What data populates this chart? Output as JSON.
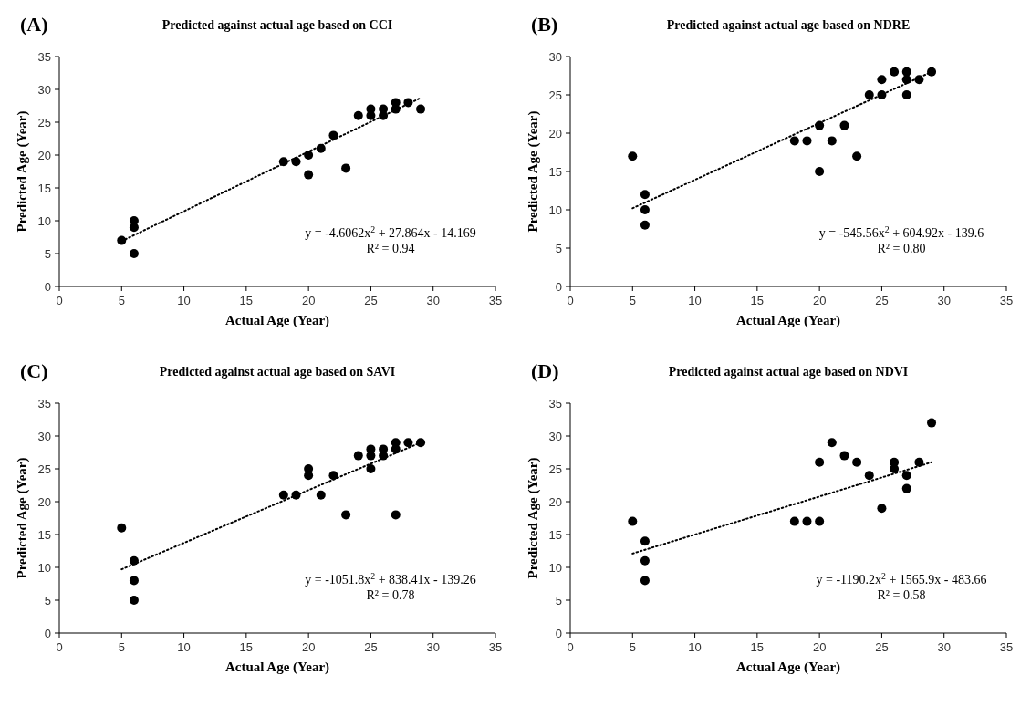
{
  "chart_data": [
    {
      "type": "scatter",
      "title": "Predicted against actual age based on CCI",
      "xlabel": "Actual Age (Year)",
      "ylabel": "Predicted Age (Year)",
      "annotations": [
        "(A)",
        "y = -4.6062x$^{2}$ + 27.864x - 14.169",
        "R² = 0.94"
      ],
      "xlim": [
        0,
        35
      ],
      "xticks": [
        0,
        5,
        10,
        15,
        20,
        25,
        30,
        35
      ],
      "ylim": [
        0,
        35
      ],
      "yticks": [
        0,
        5,
        10,
        15,
        20,
        25,
        30,
        35
      ],
      "marker": "circle",
      "series": [
        {
          "color": "#000000",
          "x": [
            5,
            6,
            6,
            6,
            18,
            19,
            20,
            20,
            21,
            22,
            23,
            24,
            25,
            25,
            26,
            26,
            27,
            27,
            28,
            29
          ],
          "values": [
            7,
            10,
            9,
            5,
            19,
            19,
            20,
            17,
            21,
            23,
            18,
            26,
            27,
            26,
            27,
            26,
            28,
            27,
            28,
            27
          ]
        },
        {
          "type": "line",
          "color": "#000000",
          "line_style": "dotted",
          "marker": "none",
          "x": [
            5,
            29
          ],
          "values": [
            6.9,
            28.7
          ]
        }
      ]
    },
    {
      "type": "scatter",
      "title": "Predicted against actual age based on NDRE",
      "xlabel": "Actual Age (Year)",
      "ylabel": "Predicted Age (Year)",
      "annotations": [
        "(B)",
        "y = -545.56x$^{2}$ + 604.92x - 139.6",
        "R² = 0.80"
      ],
      "xlim": [
        0,
        35
      ],
      "xticks": [
        0,
        5,
        10,
        15,
        20,
        25,
        30,
        35
      ],
      "ylim": [
        0,
        30
      ],
      "yticks": [
        0,
        5,
        10,
        15,
        20,
        25,
        30
      ],
      "marker": "circle",
      "series": [
        {
          "color": "#000000",
          "x": [
            5,
            6,
            6,
            6,
            18,
            19,
            20,
            20,
            21,
            22,
            23,
            24,
            25,
            25,
            26,
            27,
            27,
            27,
            28,
            29
          ],
          "values": [
            17,
            12,
            10,
            8,
            19,
            19,
            21,
            15,
            19,
            21,
            17,
            25,
            27,
            25,
            28,
            28,
            27,
            25,
            27,
            28
          ]
        },
        {
          "type": "line",
          "color": "#000000",
          "line_style": "dotted",
          "marker": "none",
          "x": [
            5,
            29
          ],
          "values": [
            10.2,
            28
          ]
        }
      ]
    },
    {
      "type": "scatter",
      "title": "Predicted against actual age based on SAVI",
      "xlabel": "Actual Age (Year)",
      "ylabel": "Predicted Age (Year)",
      "annotations": [
        "(C)",
        "y = -1051.8x$^{2}$ + 838.41x - 139.26",
        "R² = 0.78"
      ],
      "xlim": [
        0,
        35
      ],
      "xticks": [
        0,
        5,
        10,
        15,
        20,
        25,
        30,
        35
      ],
      "ylim": [
        0,
        35
      ],
      "yticks": [
        0,
        5,
        10,
        15,
        20,
        25,
        30,
        35
      ],
      "marker": "circle",
      "series": [
        {
          "color": "#000000",
          "x": [
            5,
            6,
            6,
            6,
            18,
            19,
            20,
            20,
            21,
            22,
            23,
            24,
            25,
            25,
            25,
            26,
            26,
            27,
            27,
            27,
            28,
            29
          ],
          "values": [
            16,
            11,
            8,
            5,
            21,
            21,
            25,
            24,
            21,
            24,
            18,
            27,
            28,
            27,
            25,
            28,
            27,
            29,
            28,
            18,
            29,
            29
          ]
        },
        {
          "type": "line",
          "color": "#000000",
          "line_style": "dotted",
          "marker": "none",
          "x": [
            5,
            29
          ],
          "values": [
            9.7,
            29
          ]
        }
      ]
    },
    {
      "type": "scatter",
      "title": "Predicted against actual age based on NDVI",
      "xlabel": "Actual Age (Year)",
      "ylabel": "Predicted Age (Year)",
      "annotations": [
        "(D)",
        "y = -1190.2x$^{2}$ + 1565.9x - 483.66",
        "R² = 0.58"
      ],
      "xlim": [
        0,
        35
      ],
      "xticks": [
        0,
        5,
        10,
        15,
        20,
        25,
        30,
        35
      ],
      "ylim": [
        0,
        35
      ],
      "yticks": [
        0,
        5,
        10,
        15,
        20,
        25,
        30,
        35
      ],
      "marker": "circle",
      "series": [
        {
          "color": "#000000",
          "x": [
            5,
            6,
            6,
            6,
            18,
            19,
            20,
            20,
            21,
            22,
            23,
            24,
            25,
            26,
            26,
            27,
            27,
            28,
            29
          ],
          "values": [
            17,
            14,
            11,
            8,
            17,
            17,
            26,
            17,
            29,
            27,
            26,
            24,
            19,
            26,
            25,
            24,
            22,
            26,
            32
          ]
        },
        {
          "type": "line",
          "color": "#000000",
          "line_style": "dotted",
          "marker": "none",
          "x": [
            5,
            29
          ],
          "values": [
            12.1,
            26
          ]
        }
      ]
    }
  ]
}
